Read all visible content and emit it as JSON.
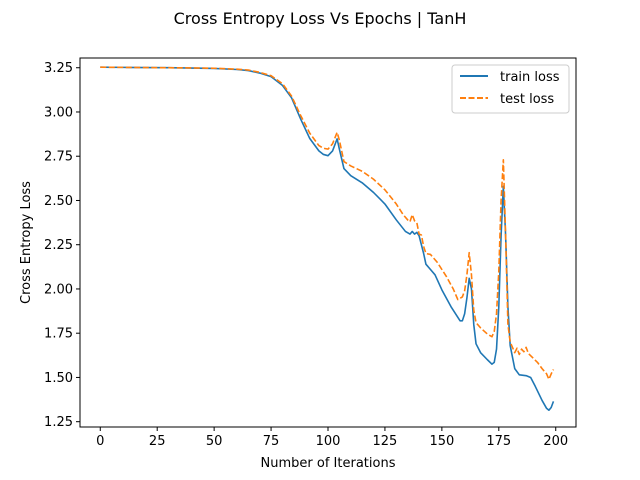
{
  "chart_data": {
    "type": "line",
    "title": "Cross Entropy Loss Vs Epochs | TanH",
    "xlabel": "Number of Iterations",
    "ylabel": "Cross Entropy Loss",
    "xlim": [
      -8.9,
      208.9
    ],
    "ylim": [
      1.22,
      3.305
    ],
    "x_ticks": [
      0,
      25,
      50,
      75,
      100,
      125,
      150,
      175,
      200
    ],
    "y_ticks": [
      1.25,
      1.5,
      1.75,
      2.0,
      2.25,
      2.5,
      2.75,
      3.0,
      3.25
    ],
    "y_tick_labels": [
      "1.25",
      "1.50",
      "1.75",
      "2.00",
      "2.25",
      "2.50",
      "2.75",
      "3.00",
      "3.25"
    ],
    "legend_position": "top-right",
    "grid": false,
    "series": [
      {
        "name": "train loss",
        "color": "#1f77b4",
        "linestyle": "solid",
        "points": [
          [
            0,
            3.253
          ],
          [
            10,
            3.252
          ],
          [
            20,
            3.251
          ],
          [
            30,
            3.25
          ],
          [
            40,
            3.248
          ],
          [
            50,
            3.246
          ],
          [
            60,
            3.24
          ],
          [
            65,
            3.234
          ],
          [
            70,
            3.22
          ],
          [
            75,
            3.2
          ],
          [
            80,
            3.15
          ],
          [
            84,
            3.08
          ],
          [
            88,
            2.96
          ],
          [
            92,
            2.85
          ],
          [
            96,
            2.78
          ],
          [
            98,
            2.76
          ],
          [
            100,
            2.753
          ],
          [
            102,
            2.78
          ],
          [
            104,
            2.848
          ],
          [
            105,
            2.79
          ],
          [
            107,
            2.68
          ],
          [
            110,
            2.64
          ],
          [
            115,
            2.6
          ],
          [
            120,
            2.545
          ],
          [
            125,
            2.48
          ],
          [
            130,
            2.39
          ],
          [
            134,
            2.325
          ],
          [
            136,
            2.31
          ],
          [
            137,
            2.325
          ],
          [
            138,
            2.31
          ],
          [
            139,
            2.32
          ],
          [
            140,
            2.3
          ],
          [
            141,
            2.25
          ],
          [
            142,
            2.2
          ],
          [
            143,
            2.14
          ],
          [
            145,
            2.11
          ],
          [
            147,
            2.08
          ],
          [
            150,
            1.995
          ],
          [
            154,
            1.9
          ],
          [
            158,
            1.82
          ],
          [
            159,
            1.82
          ],
          [
            160,
            1.86
          ],
          [
            161,
            1.95
          ],
          [
            162,
            2.06
          ],
          [
            163,
            2.0
          ],
          [
            164,
            1.8
          ],
          [
            165,
            1.69
          ],
          [
            167,
            1.64
          ],
          [
            170,
            1.6
          ],
          [
            172,
            1.575
          ],
          [
            173,
            1.585
          ],
          [
            174,
            1.66
          ],
          [
            175,
            1.9
          ],
          [
            176,
            2.3
          ],
          [
            177,
            2.58
          ],
          [
            178,
            2.3
          ],
          [
            179,
            1.9
          ],
          [
            180,
            1.68
          ],
          [
            182,
            1.55
          ],
          [
            184,
            1.515
          ],
          [
            187,
            1.51
          ],
          [
            189,
            1.5
          ],
          [
            191,
            1.45
          ],
          [
            194,
            1.37
          ],
          [
            196,
            1.325
          ],
          [
            197,
            1.315
          ],
          [
            198,
            1.33
          ],
          [
            199,
            1.365
          ]
        ]
      },
      {
        "name": "test loss",
        "color": "#ff7f0e",
        "linestyle": "dashed",
        "points": [
          [
            0,
            3.253
          ],
          [
            10,
            3.252
          ],
          [
            20,
            3.251
          ],
          [
            30,
            3.25
          ],
          [
            40,
            3.249
          ],
          [
            50,
            3.247
          ],
          [
            60,
            3.242
          ],
          [
            65,
            3.237
          ],
          [
            70,
            3.224
          ],
          [
            75,
            3.205
          ],
          [
            80,
            3.16
          ],
          [
            84,
            3.09
          ],
          [
            88,
            2.98
          ],
          [
            92,
            2.88
          ],
          [
            96,
            2.81
          ],
          [
            98,
            2.795
          ],
          [
            100,
            2.79
          ],
          [
            102,
            2.82
          ],
          [
            104,
            2.885
          ],
          [
            105,
            2.84
          ],
          [
            107,
            2.72
          ],
          [
            110,
            2.695
          ],
          [
            115,
            2.665
          ],
          [
            120,
            2.62
          ],
          [
            125,
            2.56
          ],
          [
            130,
            2.48
          ],
          [
            133,
            2.42
          ],
          [
            135,
            2.39
          ],
          [
            136,
            2.38
          ],
          [
            137,
            2.42
          ],
          [
            138,
            2.385
          ],
          [
            139,
            2.375
          ],
          [
            140,
            2.31
          ],
          [
            141,
            2.305
          ],
          [
            142,
            2.24
          ],
          [
            143,
            2.2
          ],
          [
            145,
            2.195
          ],
          [
            148,
            2.15
          ],
          [
            152,
            2.07
          ],
          [
            155,
            2.0
          ],
          [
            157,
            1.94
          ],
          [
            159,
            1.955
          ],
          [
            160,
            1.99
          ],
          [
            161,
            2.08
          ],
          [
            162,
            2.205
          ],
          [
            163,
            2.08
          ],
          [
            164,
            1.88
          ],
          [
            165,
            1.81
          ],
          [
            167,
            1.78
          ],
          [
            170,
            1.745
          ],
          [
            172,
            1.73
          ],
          [
            173,
            1.76
          ],
          [
            174,
            1.86
          ],
          [
            175,
            2.1
          ],
          [
            176,
            2.5
          ],
          [
            177,
            2.73
          ],
          [
            178,
            2.3
          ],
          [
            179,
            1.8
          ],
          [
            180,
            1.7
          ],
          [
            182,
            1.64
          ],
          [
            183,
            1.665
          ],
          [
            184,
            1.63
          ],
          [
            185,
            1.66
          ],
          [
            186,
            1.645
          ],
          [
            187,
            1.67
          ],
          [
            188,
            1.635
          ],
          [
            190,
            1.61
          ],
          [
            192,
            1.585
          ],
          [
            194,
            1.55
          ],
          [
            196,
            1.52
          ],
          [
            197,
            1.49
          ],
          [
            198,
            1.52
          ],
          [
            199,
            1.545
          ]
        ]
      }
    ]
  }
}
